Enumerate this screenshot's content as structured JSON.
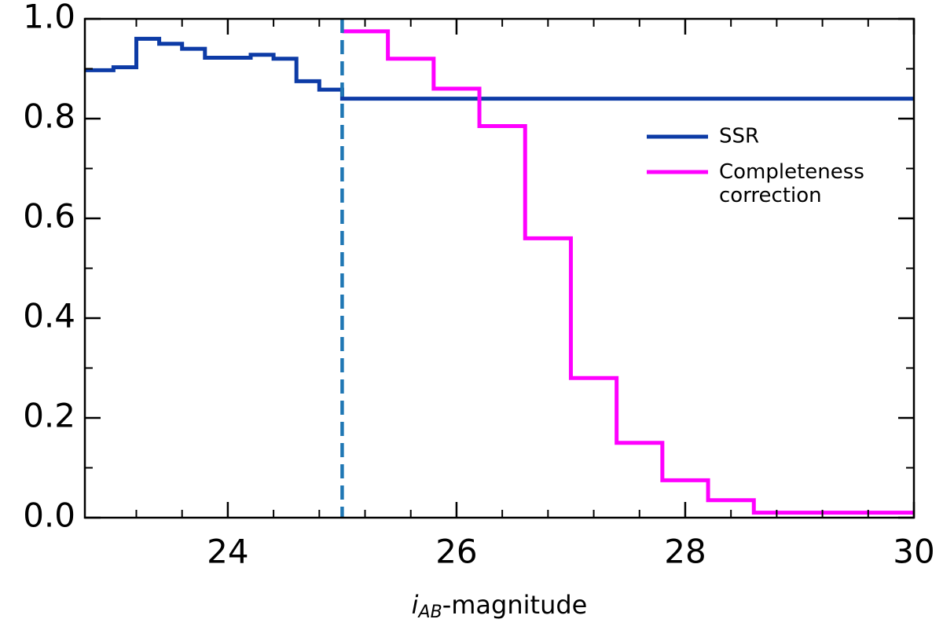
{
  "chart_data": {
    "type": "step",
    "xlabel_parts": [
      "i",
      "AB",
      "-magnitude"
    ],
    "series": [
      {
        "name": "SSR",
        "color": "#0d3ba6",
        "x": [
          22.75,
          23.0,
          23.2,
          23.4,
          23.6,
          23.8,
          24.0,
          24.2,
          24.4,
          24.6,
          24.8,
          25.0,
          30
        ],
        "values": [
          0.897,
          0.903,
          0.96,
          0.95,
          0.94,
          0.922,
          0.922,
          0.928,
          0.92,
          0.875,
          0.858,
          0.84,
          0.84
        ]
      },
      {
        "name": "Completeness\ncorrection",
        "color": "#ff00ff",
        "x": [
          25.0,
          25.4,
          25.8,
          26.2,
          26.6,
          27.0,
          27.4,
          27.8,
          28.2,
          28.6,
          30
        ],
        "values": [
          0.975,
          0.92,
          0.86,
          0.785,
          0.56,
          0.28,
          0.15,
          0.075,
          0.035,
          0.01,
          0.01
        ]
      }
    ],
    "vlines": [
      {
        "x": 25,
        "color": "#1f77b4"
      }
    ],
    "xlim": [
      22.75,
      30
    ],
    "ylim": [
      0,
      1
    ],
    "xticks": [
      24,
      26,
      28,
      30
    ],
    "xminorticks": [
      23.2,
      23.6,
      24.4,
      24.8,
      25.2,
      25.6,
      26.4,
      26.8,
      27.2,
      27.6,
      28.4,
      28.8,
      29.2,
      29.6
    ],
    "yticks": [
      {
        "value": 0,
        "label": "0.0"
      },
      0.2,
      0.4,
      0.6,
      0.8,
      {
        "value": 1,
        "label": "1.0"
      }
    ],
    "yminorticks": [
      0.1,
      0.3,
      0.5,
      0.7,
      0.9
    ],
    "legend": "upper right"
  }
}
